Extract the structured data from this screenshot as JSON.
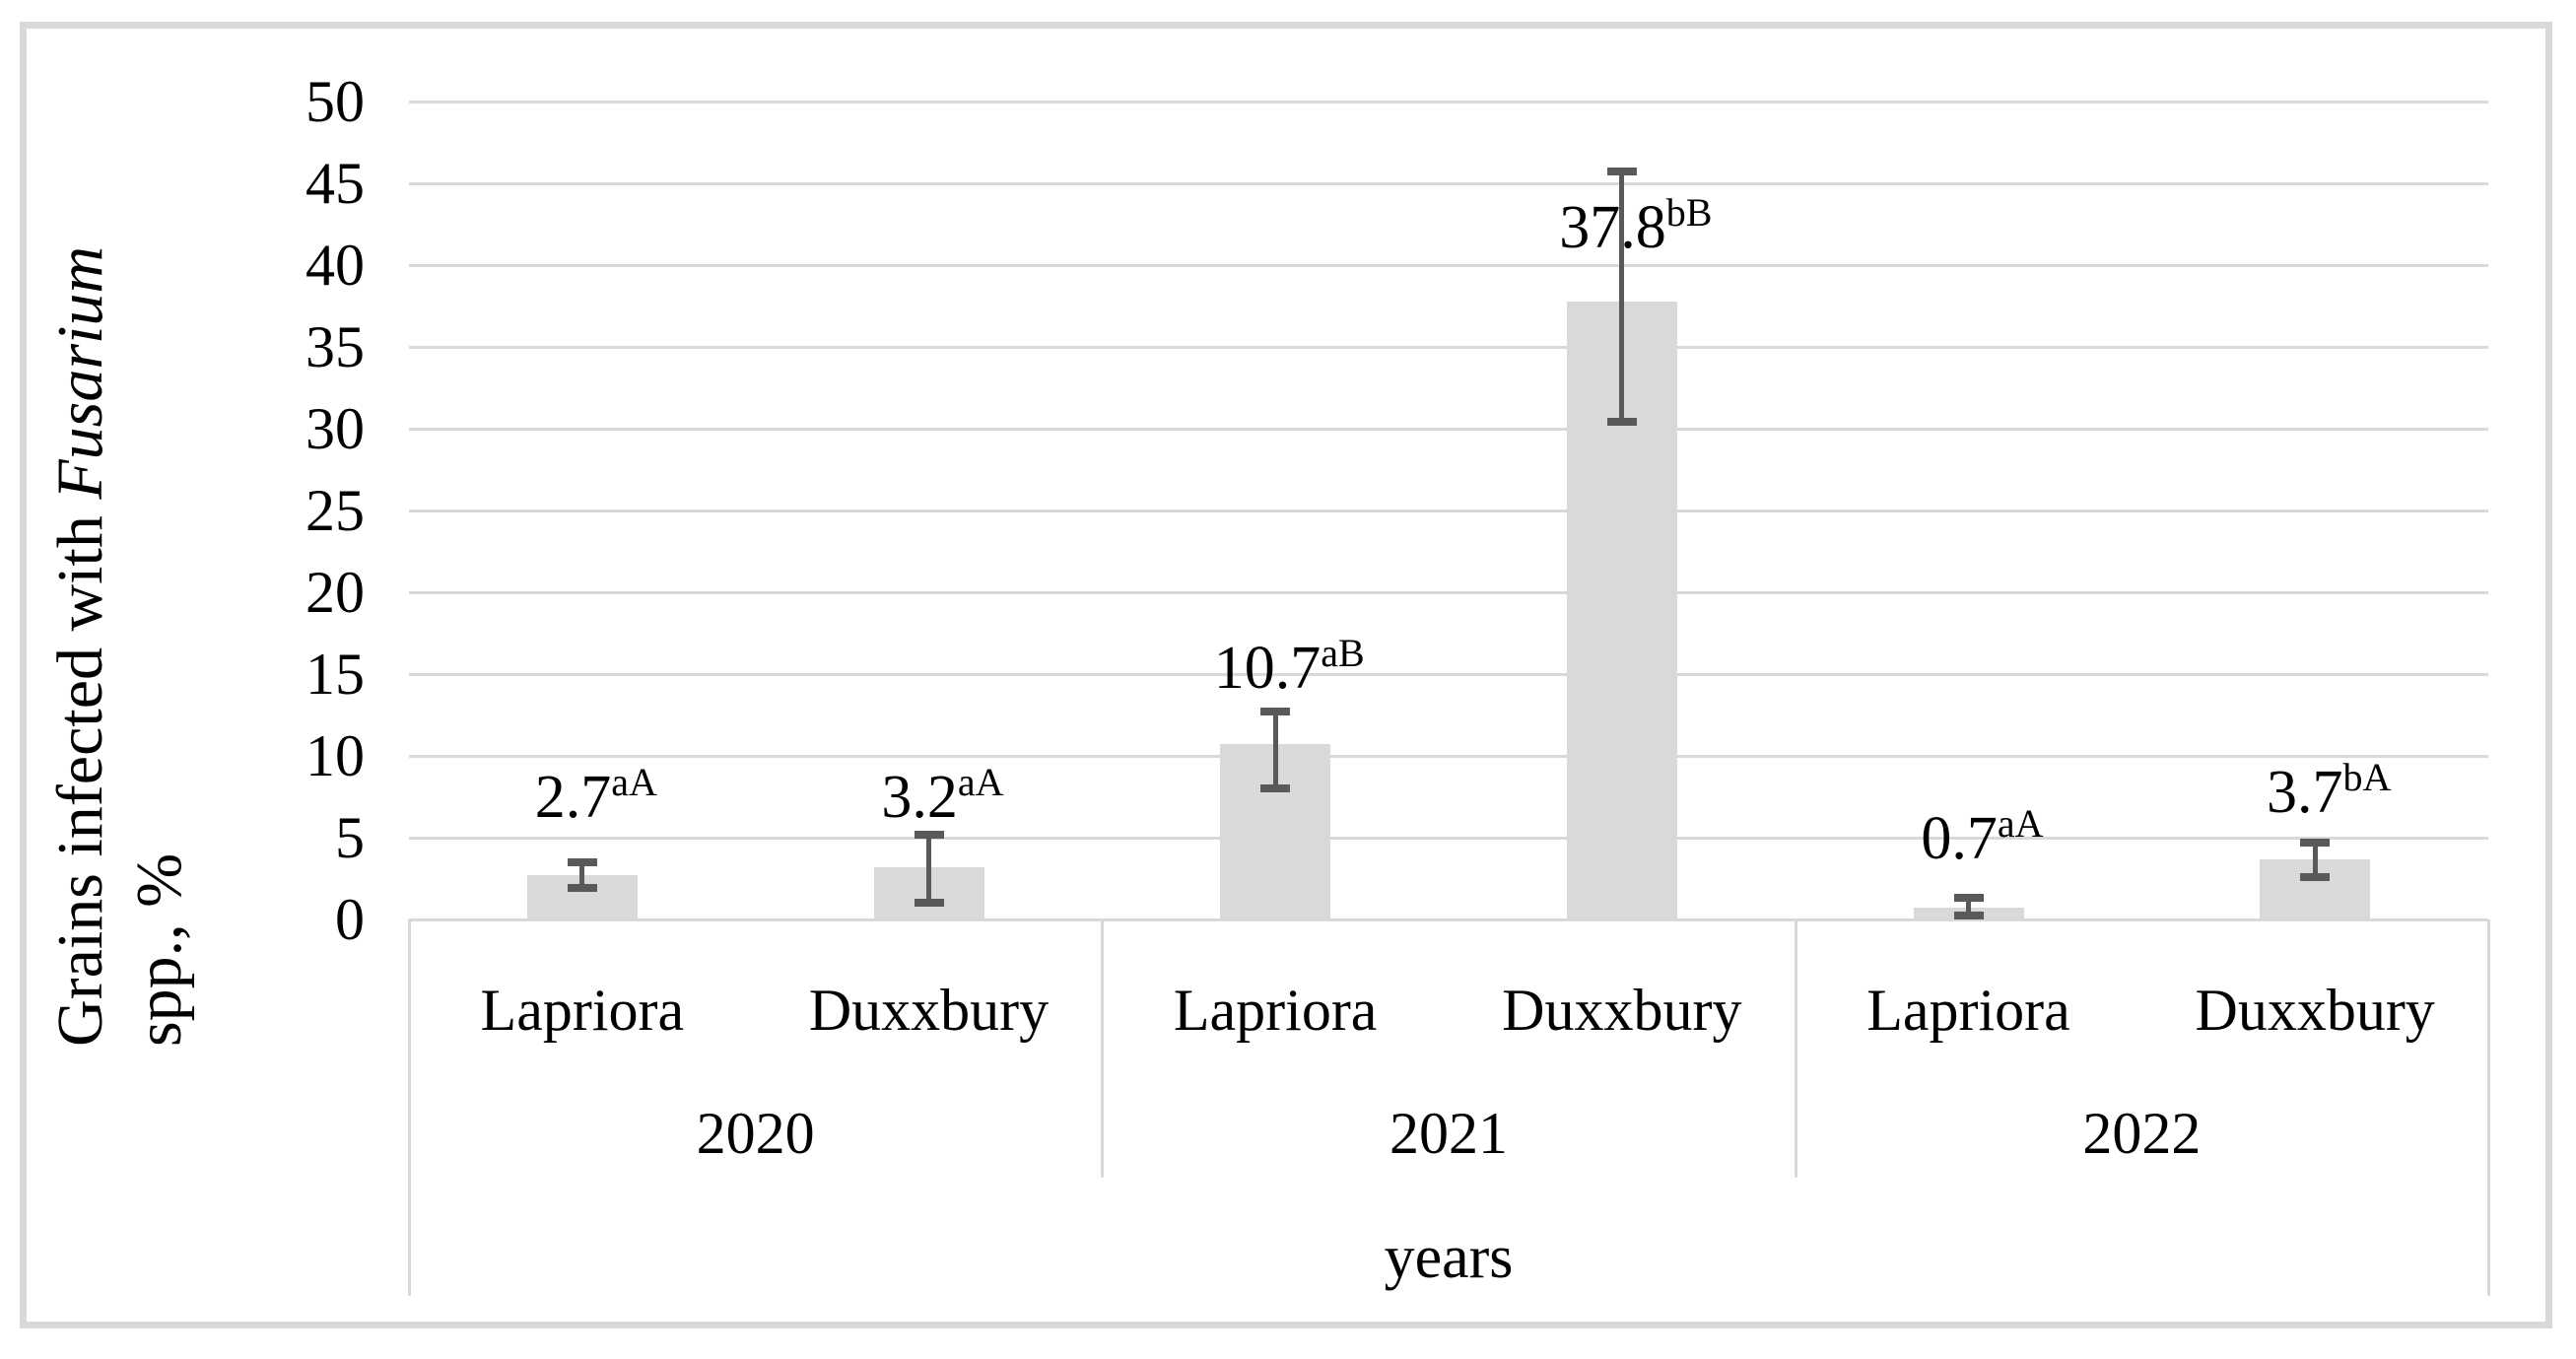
{
  "figure": {
    "y_axis_title": {
      "line1_regular": "Grains infected with ",
      "line1_italic": "Fusarium",
      "line2": "spp., %"
    },
    "x_axis_title": "years"
  },
  "chart_data": {
    "type": "bar",
    "title": "",
    "ylabel": "Grains infected with Fusarium spp., %",
    "xlabel": "years",
    "ylim": [
      0,
      50
    ],
    "yticks": [
      0,
      5,
      10,
      15,
      20,
      25,
      30,
      35,
      40,
      45,
      50
    ],
    "grid": true,
    "legend": "none",
    "bar_color": "#d9d9d9",
    "gridline_color": "#d9d9d9",
    "error_bar_color": "#595959",
    "categories": [
      "Lapriora",
      "Duxxbury",
      "Lapriora",
      "Duxxbury",
      "Lapriora",
      "Duxxbury"
    ],
    "groups": [
      {
        "year": "2020",
        "bars": [
          {
            "cultivar": "Lapriora",
            "value": 2.7,
            "superscript": "aA",
            "error_low": 1.9,
            "error_high": 3.5,
            "label_bottom_value": 5.6
          },
          {
            "cultivar": "Duxxbury",
            "value": 3.2,
            "superscript": "aA",
            "error_low": 1.0,
            "error_high": 5.2,
            "label_bottom_value": 5.6
          }
        ]
      },
      {
        "year": "2021",
        "bars": [
          {
            "cultivar": "Lapriora",
            "value": 10.7,
            "superscript": "aB",
            "error_low": 8.0,
            "error_high": 12.7,
            "label_bottom_value": 13.5
          },
          {
            "cultivar": "Duxxbury",
            "value": 37.8,
            "superscript": "bB",
            "error_low": 30.4,
            "error_high": 45.7,
            "label_bottom_value": 40.4
          }
        ]
      },
      {
        "year": "2022",
        "bars": [
          {
            "cultivar": "Lapriora",
            "value": 0.7,
            "superscript": "aA",
            "error_low": 0.25,
            "error_high": 1.3,
            "label_bottom_value": 3.1
          },
          {
            "cultivar": "Duxxbury",
            "value": 3.7,
            "superscript": "bA",
            "error_low": 2.6,
            "error_high": 4.7,
            "label_bottom_value": 5.9
          }
        ]
      }
    ]
  }
}
